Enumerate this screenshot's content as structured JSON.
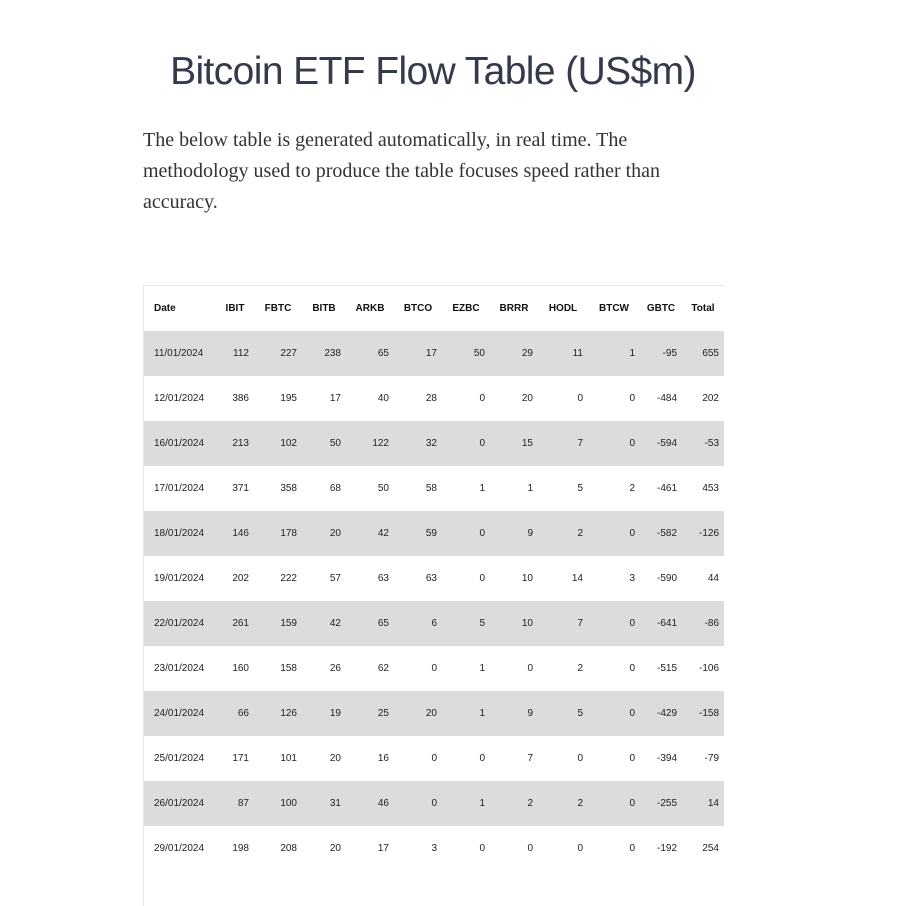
{
  "title": "Bitcoin ETF Flow Table (US$m)",
  "intro": "The below table is generated automatically, in real time. The methodology used to produce the table focuses speed rather than accuracy.",
  "table": {
    "headers": [
      "Date",
      "IBIT",
      "FBTC",
      "BITB",
      "ARKB",
      "BTCO",
      "EZBC",
      "BRRR",
      "HODL",
      "BTCW",
      "GBTC",
      "Total"
    ],
    "rows": [
      [
        "11/01/2024",
        "112",
        "227",
        "238",
        "65",
        "17",
        "50",
        "29",
        "11",
        "1",
        "-95",
        "655"
      ],
      [
        "12/01/2024",
        "386",
        "195",
        "17",
        "40",
        "28",
        "0",
        "20",
        "0",
        "0",
        "-484",
        "202"
      ],
      [
        "16/01/2024",
        "213",
        "102",
        "50",
        "122",
        "32",
        "0",
        "15",
        "7",
        "0",
        "-594",
        "-53"
      ],
      [
        "17/01/2024",
        "371",
        "358",
        "68",
        "50",
        "58",
        "1",
        "1",
        "5",
        "2",
        "-461",
        "453"
      ],
      [
        "18/01/2024",
        "146",
        "178",
        "20",
        "42",
        "59",
        "0",
        "9",
        "2",
        "0",
        "-582",
        "-126"
      ],
      [
        "19/01/2024",
        "202",
        "222",
        "57",
        "63",
        "63",
        "0",
        "10",
        "14",
        "3",
        "-590",
        "44"
      ],
      [
        "22/01/2024",
        "261",
        "159",
        "42",
        "65",
        "6",
        "5",
        "10",
        "7",
        "0",
        "-641",
        "-86"
      ],
      [
        "23/01/2024",
        "160",
        "158",
        "26",
        "62",
        "0",
        "1",
        "0",
        "2",
        "0",
        "-515",
        "-106"
      ],
      [
        "24/01/2024",
        "66",
        "126",
        "19",
        "25",
        "20",
        "1",
        "9",
        "5",
        "0",
        "-429",
        "-158"
      ],
      [
        "25/01/2024",
        "171",
        "101",
        "20",
        "16",
        "0",
        "0",
        "7",
        "0",
        "0",
        "-394",
        "-79"
      ],
      [
        "26/01/2024",
        "87",
        "100",
        "31",
        "46",
        "0",
        "1",
        "2",
        "2",
        "0",
        "-255",
        "14"
      ],
      [
        "29/01/2024",
        "198",
        "208",
        "20",
        "17",
        "3",
        "0",
        "0",
        "0",
        "0",
        "-192",
        "254"
      ]
    ]
  }
}
